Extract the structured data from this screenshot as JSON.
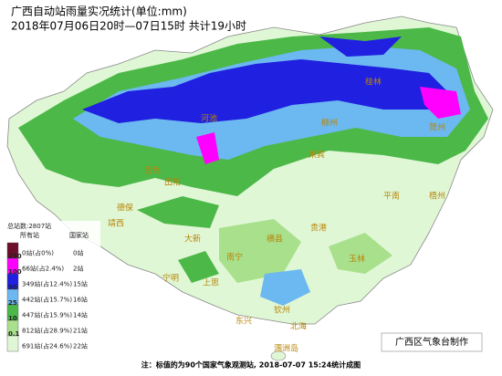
{
  "title": "广西自动站雨量实况统计(单位:mm)",
  "subtitle": "2018年07月06日20时—07日15时  共计19小时",
  "legend": {
    "total": "总站数:2807站",
    "header_all": "所有站",
    "header_national": "国家站",
    "thresholds": [
      250,
      100,
      50,
      25,
      10,
      0.1
    ],
    "rows": [
      {
        "all": "0站(占0%)",
        "national": "0站"
      },
      {
        "all": "66站(占2.4%)",
        "national": "2站"
      },
      {
        "all": "349站(占12.4%)",
        "national": "15站"
      },
      {
        "all": "442站(占15.7%)",
        "national": "16站"
      },
      {
        "all": "447站(占15.9%)",
        "national": "14站"
      },
      {
        "all": "812站(占28.9%)",
        "national": "21站"
      },
      {
        "all": "691站(占24.6%)",
        "national": "22站"
      }
    ]
  },
  "places": [
    "百色",
    "田阳",
    "德保",
    "靖西",
    "大新",
    "南宁",
    "上思",
    "东兴",
    "钦州",
    "北海",
    "涠洲岛",
    "玉林",
    "贵港",
    "来宾",
    "柳州",
    "河池",
    "桂林",
    "贺州",
    "梧州",
    "平南",
    "横县",
    "宁明"
  ],
  "footer": "注：标值的为90个国家气象观测站, 2018-07-07 15:24统计成图",
  "credit": "广西区气象台制作"
}
